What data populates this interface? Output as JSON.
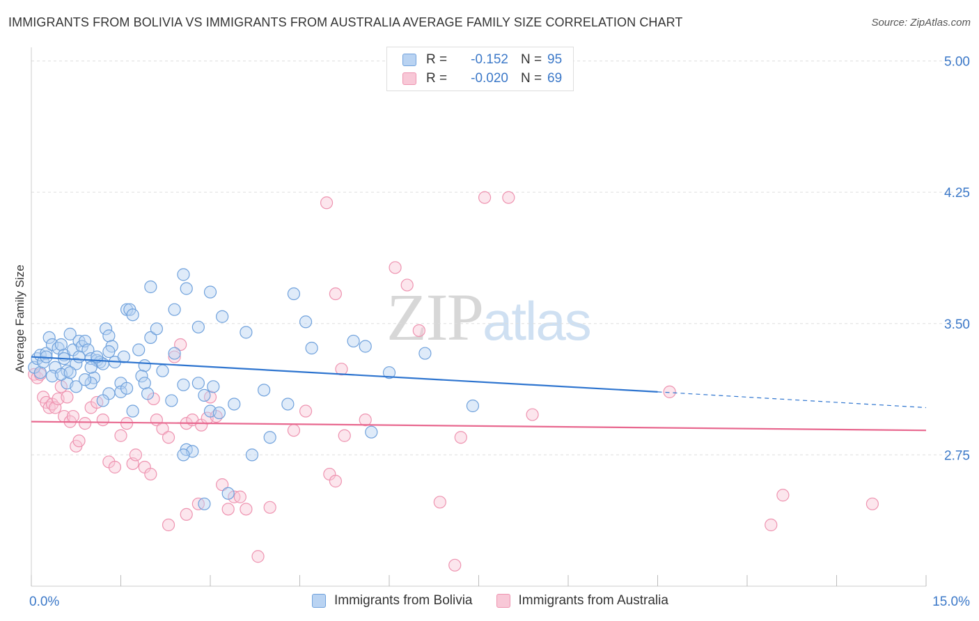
{
  "header": {
    "title": "IMMIGRANTS FROM BOLIVIA VS IMMIGRANTS FROM AUSTRALIA AVERAGE FAMILY SIZE CORRELATION CHART",
    "source": "Source: ZipAtlas.com"
  },
  "watermark": {
    "zip": "ZIP",
    "atlas": "atlas"
  },
  "legend": {
    "rows": [
      {
        "r_label": "R =",
        "r_value": "-0.152",
        "n_label": "N =",
        "n_value": "95"
      },
      {
        "r_label": "R =",
        "r_value": "-0.020",
        "n_label": "N =",
        "n_value": "69"
      }
    ]
  },
  "bottom_legend": {
    "bolivia": "Immigrants from Bolivia",
    "australia": "Immigrants from Australia"
  },
  "colors": {
    "bolivia_fill": "#b9d3f2",
    "bolivia_stroke": "#6fa1dc",
    "bolivia_line": "#2d74cf",
    "australia_fill": "#f8c8d7",
    "australia_stroke": "#ee93b0",
    "australia_line": "#e8688f",
    "grid": "#dddddd",
    "tick_text": "#3b78c8"
  },
  "chart_data": {
    "type": "scatter",
    "title": "IMMIGRANTS FROM BOLIVIA VS IMMIGRANTS FROM AUSTRALIA AVERAGE FAMILY SIZE CORRELATION CHART",
    "xlabel": "",
    "ylabel": "Average Family Size",
    "xlim": [
      0,
      15
    ],
    "ylim": [
      2.0,
      5.05
    ],
    "x_tick_labels": [
      "0.0%",
      "15.0%"
    ],
    "y_ticks": [
      2.75,
      3.5,
      4.25,
      5.0
    ],
    "y_tick_labels": [
      "2.75",
      "3.50",
      "4.25",
      "5.00"
    ],
    "grid": true,
    "legend_position": "top-center",
    "series": [
      {
        "name": "Immigrants from Bolivia",
        "r": -0.152,
        "n": 95,
        "trend": {
          "x_start": 0.0,
          "y_start": 3.31,
          "x_end": 10.5,
          "y_end": 3.11,
          "dashed_to_x": 15.0,
          "dashed_to_y": 3.02
        },
        "points": [
          [
            0.05,
            3.25
          ],
          [
            0.1,
            3.3
          ],
          [
            0.15,
            3.32
          ],
          [
            0.15,
            3.22
          ],
          [
            0.2,
            3.28
          ],
          [
            0.25,
            3.33
          ],
          [
            0.3,
            3.42
          ],
          [
            0.35,
            3.38
          ],
          [
            0.4,
            3.25
          ],
          [
            0.45,
            3.36
          ],
          [
            0.5,
            3.38
          ],
          [
            0.55,
            3.32
          ],
          [
            0.6,
            3.23
          ],
          [
            0.6,
            3.16
          ],
          [
            0.65,
            3.44
          ],
          [
            0.7,
            3.35
          ],
          [
            0.75,
            3.27
          ],
          [
            0.8,
            3.4
          ],
          [
            0.85,
            3.37
          ],
          [
            0.9,
            3.4
          ],
          [
            0.95,
            3.35
          ],
          [
            1.0,
            3.3
          ],
          [
            1.05,
            3.19
          ],
          [
            1.1,
            3.29
          ],
          [
            1.15,
            3.28
          ],
          [
            1.2,
            3.27
          ],
          [
            1.25,
            3.47
          ],
          [
            1.3,
            3.43
          ],
          [
            1.35,
            3.37
          ],
          [
            1.5,
            3.16
          ],
          [
            1.6,
            3.58
          ],
          [
            1.65,
            3.58
          ],
          [
            1.7,
            3.55
          ],
          [
            1.8,
            3.35
          ],
          [
            1.9,
            3.26
          ],
          [
            2.0,
            3.71
          ],
          [
            2.0,
            3.42
          ],
          [
            2.1,
            3.47
          ],
          [
            2.2,
            3.23
          ],
          [
            2.4,
            3.58
          ],
          [
            2.55,
            3.78
          ],
          [
            2.6,
            3.7
          ],
          [
            2.8,
            3.48
          ],
          [
            3.0,
            3.68
          ],
          [
            3.2,
            3.54
          ],
          [
            3.6,
            3.45
          ],
          [
            4.4,
            3.67
          ],
          [
            4.6,
            3.51
          ],
          [
            4.7,
            3.36
          ],
          [
            5.4,
            3.4
          ],
          [
            5.6,
            3.37
          ],
          [
            6.0,
            3.22
          ],
          [
            6.6,
            3.33
          ],
          [
            1.0,
            3.16
          ],
          [
            1.3,
            3.1
          ],
          [
            1.5,
            3.11
          ],
          [
            1.6,
            3.13
          ],
          [
            1.7,
            3.0
          ],
          [
            1.85,
            3.2
          ],
          [
            1.9,
            3.16
          ],
          [
            2.35,
            3.06
          ],
          [
            2.55,
            3.15
          ],
          [
            2.8,
            3.16
          ],
          [
            2.9,
            3.09
          ],
          [
            3.05,
            3.14
          ],
          [
            3.0,
            3.0
          ],
          [
            3.15,
            2.99
          ],
          [
            3.4,
            3.04
          ],
          [
            3.9,
            3.12
          ],
          [
            4.3,
            3.04
          ],
          [
            2.6,
            2.78
          ],
          [
            2.7,
            2.77
          ],
          [
            2.55,
            2.75
          ],
          [
            3.7,
            2.75
          ],
          [
            4.0,
            2.85
          ],
          [
            5.7,
            2.88
          ],
          [
            2.9,
            2.47
          ],
          [
            3.3,
            2.53
          ],
          [
            7.4,
            3.03
          ],
          [
            1.2,
            3.06
          ],
          [
            0.75,
            3.14
          ],
          [
            0.9,
            3.18
          ],
          [
            1.4,
            3.28
          ],
          [
            1.0,
            3.25
          ],
          [
            0.35,
            3.2
          ],
          [
            0.5,
            3.21
          ],
          [
            0.55,
            3.3
          ],
          [
            1.1,
            3.31
          ],
          [
            1.55,
            3.31
          ],
          [
            1.3,
            3.34
          ],
          [
            0.8,
            3.31
          ],
          [
            0.65,
            3.22
          ],
          [
            0.25,
            3.31
          ],
          [
            2.4,
            3.33
          ],
          [
            1.95,
            3.1
          ]
        ]
      },
      {
        "name": "Immigrants from Australia",
        "r": -0.02,
        "n": 69,
        "trend": {
          "x_start": 0.0,
          "y_start": 2.94,
          "x_end": 15.0,
          "y_end": 2.89
        },
        "points": [
          [
            0.05,
            3.21
          ],
          [
            0.1,
            3.19
          ],
          [
            0.15,
            3.21
          ],
          [
            0.2,
            3.08
          ],
          [
            0.25,
            3.05
          ],
          [
            0.3,
            3.02
          ],
          [
            0.35,
            3.04
          ],
          [
            0.4,
            3.02
          ],
          [
            0.45,
            3.07
          ],
          [
            0.5,
            3.14
          ],
          [
            0.55,
            2.97
          ],
          [
            0.6,
            3.08
          ],
          [
            0.65,
            2.94
          ],
          [
            0.7,
            2.97
          ],
          [
            0.75,
            2.8
          ],
          [
            0.8,
            2.83
          ],
          [
            0.9,
            2.93
          ],
          [
            1.0,
            3.02
          ],
          [
            1.1,
            3.05
          ],
          [
            1.2,
            2.95
          ],
          [
            1.3,
            2.71
          ],
          [
            1.4,
            2.68
          ],
          [
            1.5,
            2.86
          ],
          [
            1.6,
            2.93
          ],
          [
            1.7,
            2.7
          ],
          [
            1.75,
            2.75
          ],
          [
            1.9,
            2.68
          ],
          [
            2.0,
            2.64
          ],
          [
            2.05,
            3.07
          ],
          [
            2.1,
            2.95
          ],
          [
            2.2,
            2.9
          ],
          [
            2.3,
            2.85
          ],
          [
            2.4,
            3.31
          ],
          [
            2.5,
            3.38
          ],
          [
            2.6,
            2.93
          ],
          [
            2.7,
            2.95
          ],
          [
            2.85,
            2.92
          ],
          [
            2.95,
            2.96
          ],
          [
            3.0,
            3.08
          ],
          [
            3.1,
            2.97
          ],
          [
            3.2,
            2.58
          ],
          [
            3.3,
            2.44
          ],
          [
            3.4,
            2.51
          ],
          [
            3.5,
            2.51
          ],
          [
            3.6,
            2.44
          ],
          [
            2.3,
            2.35
          ],
          [
            2.6,
            2.41
          ],
          [
            2.8,
            2.47
          ],
          [
            3.8,
            2.17
          ],
          [
            4.0,
            2.45
          ],
          [
            4.4,
            2.89
          ],
          [
            4.6,
            3.0
          ],
          [
            4.95,
            4.19
          ],
          [
            5.0,
            2.64
          ],
          [
            5.1,
            3.67
          ],
          [
            5.1,
            2.6
          ],
          [
            5.2,
            3.24
          ],
          [
            5.25,
            2.86
          ],
          [
            5.6,
            2.95
          ],
          [
            6.1,
            3.82
          ],
          [
            6.3,
            3.72
          ],
          [
            6.5,
            3.46
          ],
          [
            6.85,
            2.48
          ],
          [
            7.1,
            2.12
          ],
          [
            7.2,
            2.85
          ],
          [
            7.6,
            4.22
          ],
          [
            8.0,
            4.22
          ],
          [
            8.4,
            2.98
          ],
          [
            10.7,
            3.11
          ]
        ]
      }
    ],
    "extra_australia_outliers": [
      [
        12.6,
        2.52
      ],
      [
        12.4,
        2.35
      ],
      [
        14.1,
        2.47
      ]
    ]
  }
}
